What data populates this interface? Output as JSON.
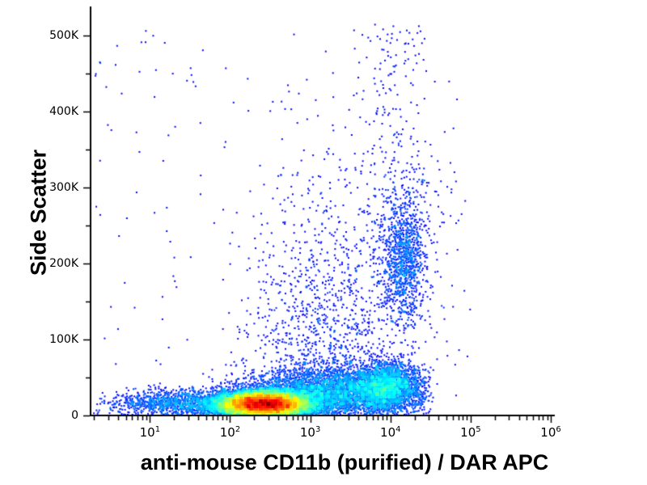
{
  "chart_data": {
    "type": "scatter",
    "subtype": "flow-cytometry-density-dot-plot",
    "title": "",
    "xlabel": "anti-mouse CD11b (purified) / DAR APC",
    "ylabel": "Side Scatter",
    "x_scale": "log10",
    "x_log_range": [
      0.26,
      6.05
    ],
    "x_tick_base": "10",
    "x_tick_exponents": [
      1,
      2,
      3,
      4,
      5,
      6
    ],
    "x_minor_mantissas": [
      2,
      3,
      4,
      5,
      6,
      7,
      8,
      9
    ],
    "y_range": [
      0,
      532000
    ],
    "y_tick_values": [
      0,
      100000,
      200000,
      300000,
      400000,
      500000
    ],
    "y_tick_labels": [
      "0",
      "100K",
      "200K",
      "300K",
      "400K",
      "500K"
    ],
    "y_minor_step": 50000,
    "grid": false,
    "legend": null,
    "colormap": "jet",
    "density_gamma": 0.42,
    "min_color_t": 0.08,
    "axis_color": "#000000",
    "sparse_point_color": "#0000d8",
    "seed": 7,
    "populations": [
      {
        "name": "main-dense-core",
        "count": 15000,
        "x_log10": {
          "dist": "normal",
          "mean": 2.42,
          "sd": 0.3,
          "min": 1.0,
          "max": 3.7
        },
        "y": {
          "dist": "normal",
          "mean": 15000,
          "sd": 8500,
          "min": 300,
          "max": 70000
        }
      },
      {
        "name": "bottom-band",
        "count": 3800,
        "x_log10": {
          "dist": "normal",
          "mean": 3.3,
          "sd": 0.55,
          "min": 1.2,
          "max": 4.5
        },
        "y": {
          "dist": "normal",
          "mean": 30000,
          "sd": 17000,
          "min": 300,
          "max": 85000
        }
      },
      {
        "name": "right-low-shoulder",
        "count": 2200,
        "x_log10": {
          "dist": "normal",
          "mean": 3.95,
          "sd": 0.22,
          "min": 3.2,
          "max": 4.55
        },
        "y": {
          "dist": "normal",
          "mean": 38000,
          "sd": 16000,
          "min": 800,
          "max": 95000
        }
      },
      {
        "name": "mid-vertical-smear",
        "count": 1100,
        "x_log10": {
          "dist": "normal",
          "mean": 3.2,
          "sd": 0.5,
          "min": 1.9,
          "max": 4.4
        },
        "y": {
          "dist": "halfnormal",
          "scale": 130000,
          "offset": 30000,
          "min": 30000,
          "max": 515000
        }
      },
      {
        "name": "upper-right-cluster",
        "count": 950,
        "x_log10": {
          "dist": "normal",
          "mean": 4.17,
          "sd": 0.13,
          "min": 3.75,
          "max": 4.65
        },
        "y": {
          "dist": "normal",
          "mean": 208000,
          "sd": 40000,
          "min": 100000,
          "max": 335000
        }
      },
      {
        "name": "upper-right-halo",
        "count": 280,
        "x_log10": {
          "dist": "normal",
          "mean": 4.2,
          "sd": 0.3,
          "min": 3.5,
          "max": 5.0
        },
        "y": {
          "dist": "normal",
          "mean": 212000,
          "sd": 85000,
          "min": 60000,
          "max": 430000
        }
      },
      {
        "name": "tall-sparse-column",
        "count": 170,
        "x_log10": {
          "dist": "normal",
          "mean": 4.0,
          "sd": 0.22,
          "min": 3.4,
          "max": 4.6
        },
        "y": {
          "dist": "uniform",
          "min": 250000,
          "max": 515000
        }
      },
      {
        "name": "left-edge-debris",
        "count": 1100,
        "x_log10": {
          "dist": "normal",
          "mean": 1.35,
          "sd": 0.45,
          "min": 0.3,
          "max": 2.3
        },
        "y": {
          "dist": "normal",
          "mean": 15000,
          "sd": 9000,
          "min": 300,
          "max": 60000
        }
      },
      {
        "name": "background-sparse",
        "count": 200,
        "x_log10": {
          "dist": "uniform",
          "min": 0.32,
          "max": 5.0
        },
        "y": {
          "dist": "uniform",
          "min": 2000,
          "max": 510000
        }
      }
    ]
  }
}
